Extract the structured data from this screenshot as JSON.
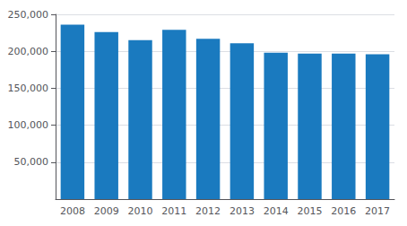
{
  "chart_data": {
    "type": "bar",
    "categories": [
      "2008",
      "2009",
      "2010",
      "2011",
      "2012",
      "2013",
      "2014",
      "2015",
      "2016",
      "2017"
    ],
    "values": [
      236000,
      226000,
      215000,
      229000,
      217000,
      211000,
      198000,
      197000,
      197000,
      196000
    ],
    "color": "#1a7abf",
    "ylim": [
      0,
      250000
    ],
    "yticks": [
      {
        "value": 50000,
        "label": "50,000"
      },
      {
        "value": 100000,
        "label": "100,000"
      },
      {
        "value": 150000,
        "label": "150,000"
      },
      {
        "value": 200000,
        "label": "200,000"
      },
      {
        "value": 250000,
        "label": "250,000"
      }
    ],
    "grid": true
  }
}
